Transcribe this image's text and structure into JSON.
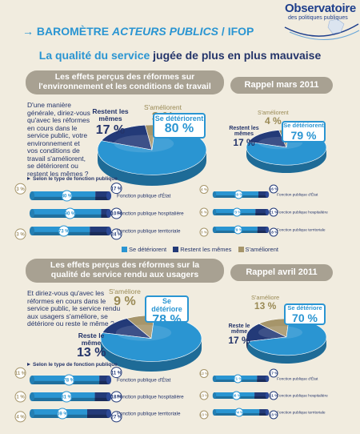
{
  "logo": {
    "title": "Observatoire",
    "subtitle": "des politiques publiques"
  },
  "header": {
    "arrow": "→",
    "prefix": "BAROMÈTRE",
    "italic": "ACTEURS PUBLICS",
    "suffix": "/ IFOP"
  },
  "subtitle": {
    "part1": "La qualité du service",
    "part2": "jugée de plus en plus mauvaise"
  },
  "colors": {
    "deteriorent": "#2a95d2",
    "memes": "#233a78",
    "ameliorent": "#a6956a",
    "pill": "#a8a192",
    "background": "#f1ecdf"
  },
  "legend": {
    "deteriorent": "Se détériorent",
    "memes": "Restent les mêmes",
    "ameliorent": "S'améliorent"
  },
  "section1": {
    "title": "Les effets perçus des réformes sur l'environnement et les conditions de travail",
    "question": "D'une manière générale, diriez-vous qu'avec les réformes en cours dans le service public, votre environnement et vos conditions de travail s'améliorent, se détériorent ou restent les mêmes ?",
    "recall": "Rappel mars 2011",
    "selon": "Selon le type de fonction publique",
    "main": {
      "deteriorent_label": "Se détériorent",
      "deteriorent": "80 %",
      "memes_label": "Restent les mêmes",
      "memes": "17 %",
      "ameliorent_label": "S'améliorent",
      "ameliorent": "3 %"
    },
    "rappel": {
      "deteriorent_label": "Se détériorent",
      "deteriorent": "79 %",
      "memes_label": "Restent les mêmes",
      "memes": "17 %",
      "ameliorent_label": "S'améliorent",
      "ameliorent": "4 %"
    },
    "rows": [
      {
        "label": "Fonction publique d'État",
        "ameliorent": "3 %",
        "deteriorent": "80 %",
        "memes": "17 %"
      },
      {
        "label": "Fonction publique hospitalière",
        "ameliorent": "",
        "deteriorent": "90 %",
        "memes": "10 %"
      },
      {
        "label": "Fonction publique territoriale",
        "ameliorent": "3 %",
        "deteriorent": "73 %",
        "memes": "24 %"
      }
    ],
    "rows_rappel": [
      {
        "label": "Fonction publique d'État",
        "ameliorent": "4 %",
        "deteriorent": "80 %",
        "memes": "16 %"
      },
      {
        "label": "Fonction publique hospitalière",
        "ameliorent": "6 %",
        "deteriorent": "73 %",
        "memes": "21 %"
      },
      {
        "label": "Fonction publique territoriale",
        "ameliorent": "3 %",
        "deteriorent": "79 %",
        "memes": "18 %"
      }
    ]
  },
  "section2": {
    "title": "Les effets perçus des réformes sur la qualité de service rendu aux usagers",
    "question": "Et diriez-vous qu'avec les réformes en cours dans le service public, le service rendu aux usagers s'améliore, se détériore ou reste le même ?",
    "recall": "Rappel avril 2011",
    "selon": "Selon le type de fonction publique",
    "main": {
      "deteriore_label": "Se détériore",
      "deteriore": "78 %",
      "meme_label": "Reste le même",
      "meme": "13 %",
      "ameliore_label": "S'améliore",
      "ameliore": "9 %"
    },
    "rappel": {
      "deteriore_label": "Se détériore",
      "deteriore": "70 %",
      "meme_label": "Reste le même",
      "meme": "17 %",
      "ameliore_label": "S'améliore",
      "ameliore": "13 %"
    },
    "rows": [
      {
        "label": "Fonction publique d'État",
        "ameliorent": "11 %",
        "deteriorent": "78 %",
        "memes": "11 %"
      },
      {
        "label": "Fonction publique hospitalière",
        "ameliorent": "1 %",
        "deteriorent": "81 %",
        "memes": "18 %"
      },
      {
        "label": "Fonction publique territoriale",
        "ameliorent": "4 %",
        "deteriorent": "69 %",
        "memes": "27 %"
      }
    ],
    "rows_rappel": [
      {
        "label": "Fonction publique d'État",
        "ameliorent": "12 %",
        "deteriorent": "71 %",
        "memes": "17 %"
      },
      {
        "label": "Fonction publique hospitalière",
        "ameliorent": "13 %",
        "deteriorent": "66 %",
        "memes": "21 %"
      },
      {
        "label": "Fonction publique territoriale",
        "ameliorent": "13 %",
        "deteriorent": "74 %",
        "memes": "13 %"
      }
    ]
  },
  "chart_data": [
    {
      "type": "pie",
      "title": "Les effets perçus des réformes sur l'environnement et les conditions de travail",
      "categories": [
        "Se détériorent",
        "Restent les mêmes",
        "S'améliorent"
      ],
      "values": [
        80,
        17,
        3
      ]
    },
    {
      "type": "pie",
      "title": "Rappel mars 2011",
      "categories": [
        "Se détériorent",
        "Restent les mêmes",
        "S'améliorent"
      ],
      "values": [
        79,
        17,
        4
      ]
    },
    {
      "type": "bar",
      "title": "Selon le type de fonction publique",
      "categories": [
        "Fonction publique d'État",
        "Fonction publique hospitalière",
        "Fonction publique territoriale"
      ],
      "series": [
        {
          "name": "Se détériorent",
          "values": [
            80,
            90,
            73
          ]
        },
        {
          "name": "Restent les mêmes",
          "values": [
            17,
            10,
            24
          ]
        },
        {
          "name": "S'améliorent",
          "values": [
            3,
            0,
            3
          ]
        }
      ]
    },
    {
      "type": "bar",
      "title": "Rappel mars 2011",
      "categories": [
        "Fonction publique d'État",
        "Fonction publique hospitalière",
        "Fonction publique territoriale"
      ],
      "series": [
        {
          "name": "Se détériorent",
          "values": [
            80,
            73,
            79
          ]
        },
        {
          "name": "Restent les mêmes",
          "values": [
            16,
            21,
            18
          ]
        },
        {
          "name": "S'améliorent",
          "values": [
            4,
            6,
            3
          ]
        }
      ]
    },
    {
      "type": "pie",
      "title": "Les effets perçus des réformes sur la qualité de service rendu aux usagers",
      "categories": [
        "Se détériore",
        "Reste le même",
        "S'améliore"
      ],
      "values": [
        78,
        13,
        9
      ]
    },
    {
      "type": "pie",
      "title": "Rappel avril 2011",
      "categories": [
        "Se détériore",
        "Reste le même",
        "S'améliore"
      ],
      "values": [
        70,
        17,
        13
      ]
    },
    {
      "type": "bar",
      "title": "Selon le type de fonction publique",
      "categories": [
        "Fonction publique d'État",
        "Fonction publique hospitalière",
        "Fonction publique territoriale"
      ],
      "series": [
        {
          "name": "Se détériorent",
          "values": [
            78,
            81,
            69
          ]
        },
        {
          "name": "Restent les mêmes",
          "values": [
            11,
            18,
            27
          ]
        },
        {
          "name": "S'améliorent",
          "values": [
            11,
            1,
            4
          ]
        }
      ]
    },
    {
      "type": "bar",
      "title": "Rappel avril 2011",
      "categories": [
        "Fonction publique d'État",
        "Fonction publique hospitalière",
        "Fonction publique territoriale"
      ],
      "series": [
        {
          "name": "Se détériorent",
          "values": [
            71,
            66,
            74
          ]
        },
        {
          "name": "Restent les mêmes",
          "values": [
            17,
            21,
            13
          ]
        },
        {
          "name": "S'améliorent",
          "values": [
            12,
            13,
            13
          ]
        }
      ]
    }
  ]
}
